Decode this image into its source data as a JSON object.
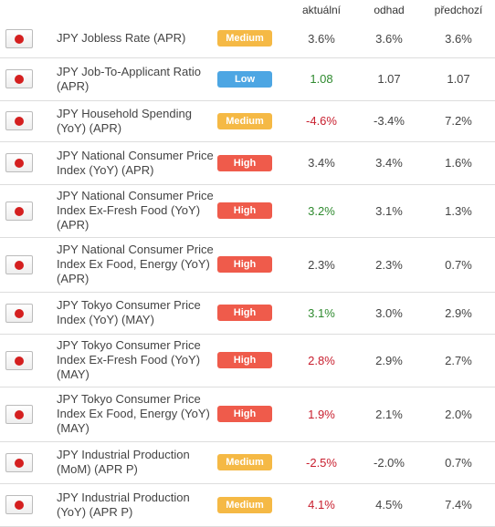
{
  "columns": [
    "aktuální",
    "odhad",
    "předchozí"
  ],
  "rows": [
    {
      "name": "JPY Jobless Rate (APR)",
      "importance": "Medium",
      "importance_color": "#f5b945",
      "actual": "3.6%",
      "actual_color": "#444444",
      "forecast": "3.6%",
      "previous": "3.6%"
    },
    {
      "name": "JPY Job-To-Applicant Ratio (APR)",
      "importance": "Low",
      "importance_color": "#4da6e3",
      "actual": "1.08",
      "actual_color": "#2f8a2f",
      "forecast": "1.07",
      "previous": "1.07"
    },
    {
      "name": "JPY Household Spending (YoY) (APR)",
      "importance": "Medium",
      "importance_color": "#f5b945",
      "actual": "-4.6%",
      "actual_color": "#c81e2e",
      "forecast": "-3.4%",
      "previous": "7.2%"
    },
    {
      "name": "JPY National Consumer Price Index (YoY) (APR)",
      "importance": "High",
      "importance_color": "#ef5b4b",
      "actual": "3.4%",
      "actual_color": "#444444",
      "forecast": "3.4%",
      "previous": "1.6%"
    },
    {
      "name": "JPY National Consumer Price Index Ex-Fresh Food (YoY) (APR)",
      "importance": "High",
      "importance_color": "#ef5b4b",
      "actual": "3.2%",
      "actual_color": "#2f8a2f",
      "forecast": "3.1%",
      "previous": "1.3%"
    },
    {
      "name": "JPY National Consumer Price Index Ex Food, Energy (YoY) (APR)",
      "importance": "High",
      "importance_color": "#ef5b4b",
      "actual": "2.3%",
      "actual_color": "#444444",
      "forecast": "2.3%",
      "previous": "0.7%"
    },
    {
      "name": "JPY Tokyo Consumer Price Index (YoY) (MAY)",
      "importance": "High",
      "importance_color": "#ef5b4b",
      "actual": "3.1%",
      "actual_color": "#2f8a2f",
      "forecast": "3.0%",
      "previous": "2.9%"
    },
    {
      "name": "JPY Tokyo Consumer Price Index Ex-Fresh Food (YoY) (MAY)",
      "importance": "High",
      "importance_color": "#ef5b4b",
      "actual": "2.8%",
      "actual_color": "#c81e2e",
      "forecast": "2.9%",
      "previous": "2.7%"
    },
    {
      "name": "JPY Tokyo Consumer Price Index Ex Food, Energy (YoY) (MAY)",
      "importance": "High",
      "importance_color": "#ef5b4b",
      "actual": "1.9%",
      "actual_color": "#c81e2e",
      "forecast": "2.1%",
      "previous": "2.0%"
    },
    {
      "name": "JPY Industrial Production (MoM) (APR P)",
      "importance": "Medium",
      "importance_color": "#f5b945",
      "actual": "-2.5%",
      "actual_color": "#c81e2e",
      "forecast": "-2.0%",
      "previous": "0.7%"
    },
    {
      "name": "JPY Industrial Production (YoY) (APR P)",
      "importance": "Medium",
      "importance_color": "#f5b945",
      "actual": "4.1%",
      "actual_color": "#c81e2e",
      "forecast": "4.5%",
      "previous": "7.4%"
    }
  ]
}
